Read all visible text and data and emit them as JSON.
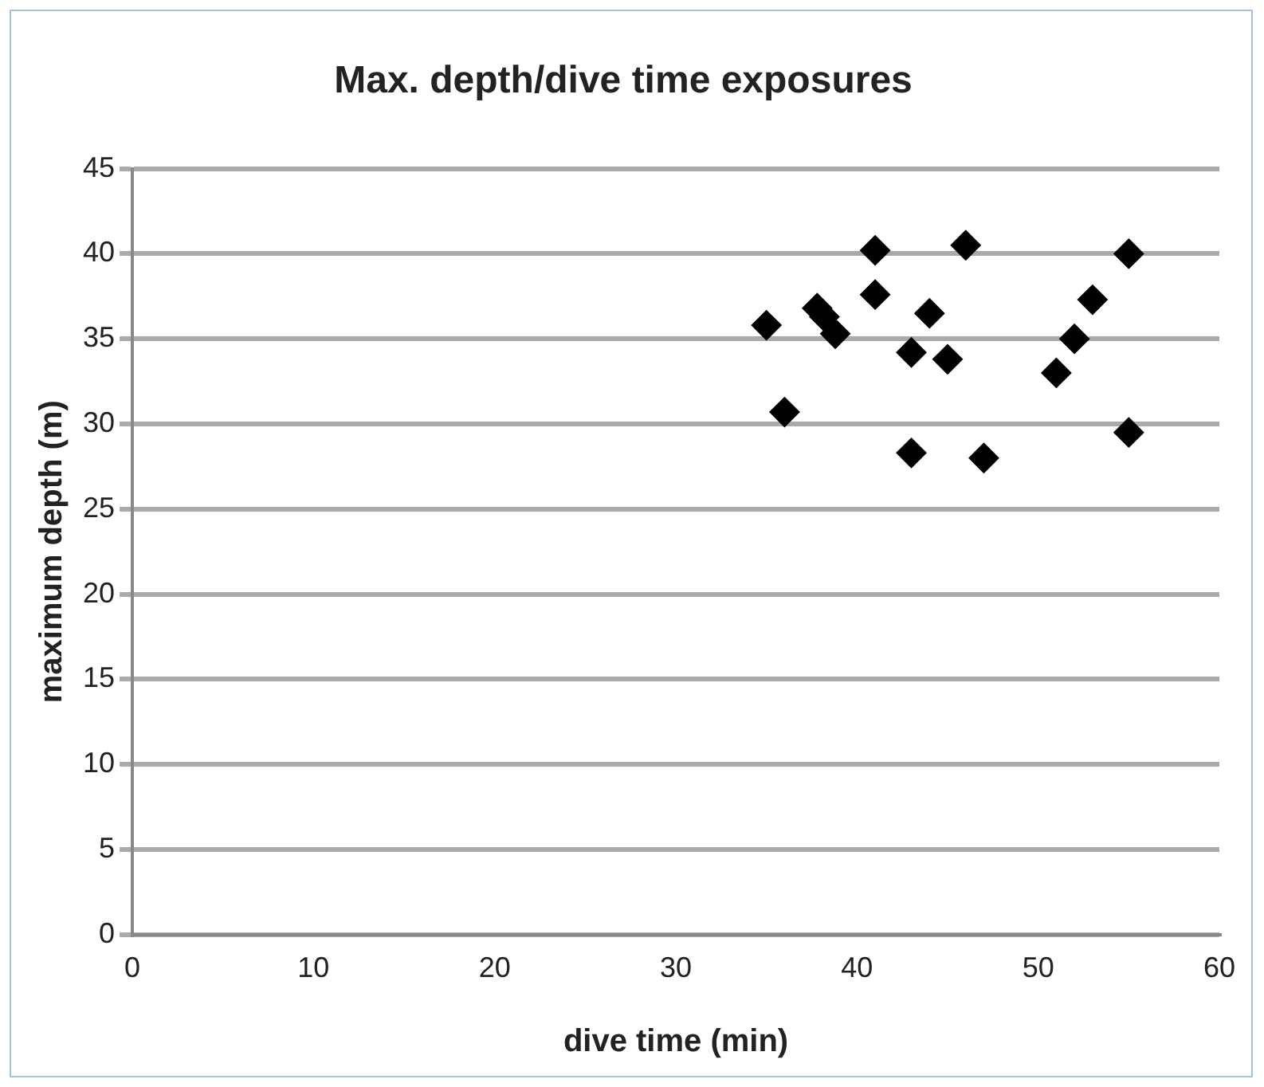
{
  "chart_data": {
    "type": "scatter",
    "title": "Max. depth/dive time exposures",
    "xlabel": "dive time (min)",
    "ylabel": "maximum depth (m)",
    "x": [
      41,
      46,
      55,
      41,
      44,
      53,
      35,
      37.8,
      38.2,
      38.8,
      43,
      45,
      52,
      51,
      36,
      55,
      43,
      47
    ],
    "values": [
      40.2,
      40.5,
      40,
      37.6,
      36.5,
      37.3,
      35.8,
      36.8,
      36.3,
      35.3,
      34.2,
      33.8,
      35,
      33,
      30.7,
      29.5,
      28.3,
      28
    ],
    "color": "#000000",
    "marker": "diamond",
    "xlim": [
      0,
      60
    ],
    "xticks": [
      0,
      10,
      20,
      30,
      40,
      50,
      60
    ],
    "ylim": [
      0,
      45
    ],
    "yticks": [
      0,
      5,
      10,
      15,
      20,
      25,
      30,
      35,
      40,
      45
    ],
    "grid": "y",
    "legend": false
  }
}
